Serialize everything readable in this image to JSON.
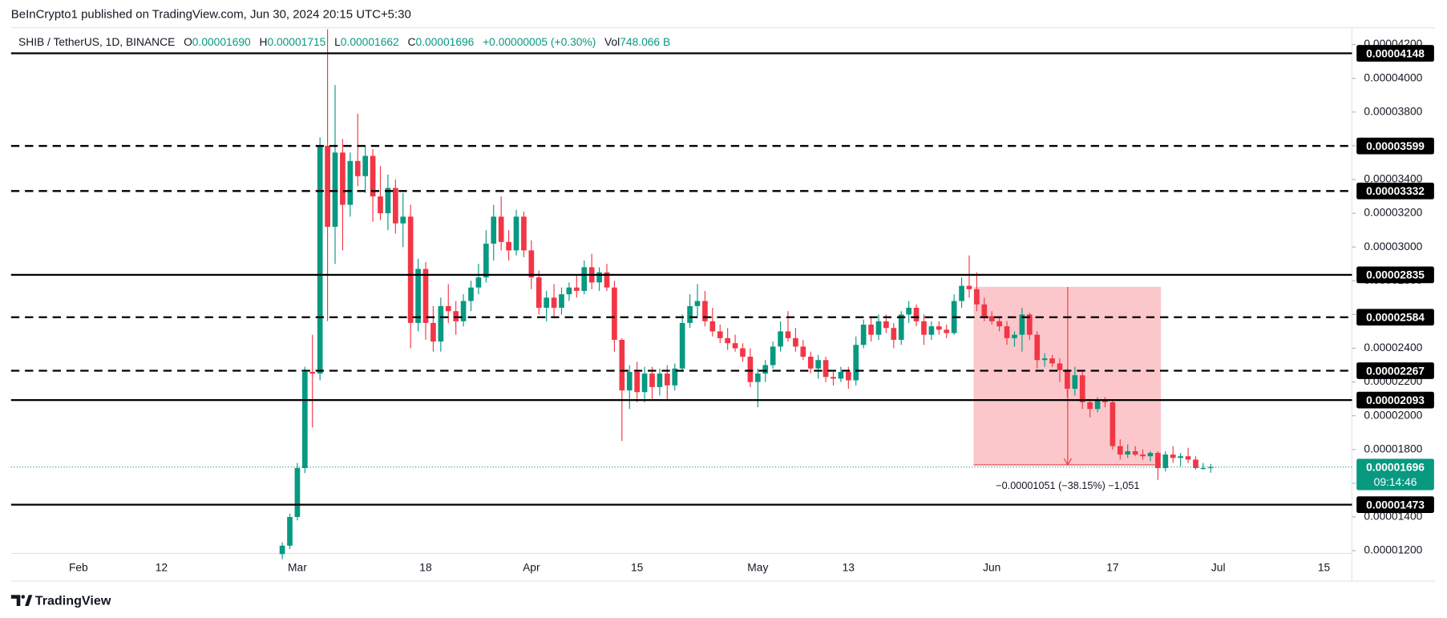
{
  "header": {
    "published": "BeInCrypto1 published on TradingView.com, Jun 30, 2024 20:15 UTC+5:30"
  },
  "legend": {
    "symbol": "SHIB / TetherUS, 1D, BINANCE",
    "o_label": "O",
    "o": "0.00001690",
    "h_label": "H",
    "h": "0.00001715",
    "l_label": "L",
    "l": "0.00001662",
    "c_label": "C",
    "c": "0.00001696",
    "change": "+0.00000005 (+0.30%)",
    "vol_label": "Vol",
    "vol": "748.066 B"
  },
  "footer": {
    "brand": "TradingView"
  },
  "chart_data": {
    "type": "candlestick",
    "up_color": "#089981",
    "down_color": "#f23645",
    "grid": false,
    "categories": [
      "Feb",
      null,
      null,
      null,
      null,
      null,
      null,
      null,
      null,
      null,
      null,
      "12",
      null,
      null,
      null,
      null,
      null,
      null,
      null,
      null,
      null,
      null,
      null,
      null,
      null,
      null,
      null,
      null,
      null,
      "Mar",
      null,
      null,
      null,
      null,
      null,
      null,
      null,
      null,
      null,
      null,
      null,
      null,
      null,
      null,
      null,
      null,
      "18",
      null,
      null,
      null,
      null,
      null,
      null,
      null,
      null,
      null,
      null,
      null,
      null,
      null,
      "Apr",
      null,
      null,
      null,
      null,
      null,
      null,
      null,
      null,
      null,
      null,
      null,
      null,
      null,
      "15",
      null,
      null,
      null,
      null,
      null,
      null,
      null,
      null,
      null,
      null,
      null,
      null,
      null,
      null,
      null,
      "May",
      null,
      null,
      null,
      null,
      null,
      null,
      null,
      null,
      null,
      null,
      null,
      "13",
      null,
      null,
      null,
      null,
      null,
      null,
      null,
      null,
      null,
      null,
      null,
      null,
      null,
      null,
      null,
      null,
      null,
      null,
      "Jun",
      null,
      null,
      null,
      null,
      null,
      null,
      null,
      null,
      null,
      null,
      null,
      null,
      null,
      null,
      null,
      "17",
      null,
      null,
      null,
      null,
      null,
      null,
      null,
      null,
      null,
      null,
      null,
      null,
      null,
      "Jul",
      null,
      null,
      null,
      null,
      null,
      null,
      null,
      null,
      null,
      null,
      null,
      null,
      null,
      "15",
      null,
      null,
      null
    ],
    "open": [
      null,
      null,
      null,
      null,
      null,
      null,
      null,
      null,
      null,
      null,
      null,
      null,
      null,
      null,
      null,
      null,
      null,
      null,
      null,
      null,
      null,
      null,
      null,
      null,
      null,
      null,
      null,
      1.18e-05,
      1.23e-05,
      1.4e-05,
      1.69e-05,
      2.26e-05,
      2.25e-05,
      3.6e-05,
      3.12e-05,
      3.56e-05,
      3.25e-05,
      3.51e-05,
      3.42e-05,
      3.54e-05,
      3.3e-05,
      3.2e-05,
      3.35e-05,
      3.14e-05,
      3.18e-05,
      2.55e-05,
      2.87e-05,
      2.55e-05,
      2.44e-05,
      2.65e-05,
      2.62e-05,
      2.56e-05,
      2.68e-05,
      2.76e-05,
      2.82e-05,
      3.02e-05,
      3.18e-05,
      3.03e-05,
      2.98e-05,
      3.18e-05,
      2.98e-05,
      2.82e-05,
      2.64e-05,
      2.7e-05,
      2.64e-05,
      2.72e-05,
      2.76e-05,
      2.74e-05,
      2.88e-05,
      2.79e-05,
      2.85e-05,
      2.76e-05,
      2.45e-05,
      2.15e-05,
      2.26e-05,
      2.14e-05,
      2.25e-05,
      2.17e-05,
      2.25e-05,
      2.18e-05,
      2.28e-05,
      2.55e-05,
      2.65e-05,
      2.68e-05,
      2.56e-05,
      2.5e-05,
      2.46e-05,
      2.43e-05,
      2.4e-05,
      2.35e-05,
      2.2e-05,
      2.25e-05,
      2.3e-05,
      2.41e-05,
      2.5e-05,
      2.46e-05,
      2.41e-05,
      2.35e-05,
      2.28e-05,
      2.33e-05,
      2.23e-05,
      2.22e-05,
      2.26e-05,
      2.21e-05,
      2.42e-05,
      2.54e-05,
      2.48e-05,
      2.56e-05,
      2.52e-05,
      2.45e-05,
      2.6e-05,
      2.64e-05,
      2.56e-05,
      2.48e-05,
      2.53e-05,
      2.51e-05,
      2.49e-05,
      2.68e-05,
      2.77e-05,
      2.75e-05,
      2.66e-05,
      2.59e-05,
      2.56e-05,
      2.53e-05,
      2.46e-05,
      2.48e-05,
      2.6e-05,
      2.48e-05,
      2.33e-05,
      2.34e-05,
      2.31e-05,
      2.27e-05,
      2.16e-05,
      2.24e-05,
      2.08e-05,
      2.04e-05,
      2.09e-05,
      2.08e-05,
      1.82e-05,
      1.77e-05,
      1.79e-05,
      1.77e-05,
      1.76e-05,
      1.78e-05,
      1.69e-05,
      1.77e-05,
      1.75e-05,
      1.76e-05,
      1.74e-05,
      1.69e-05,
      1.69e-05,
      null,
      null,
      null,
      null,
      null,
      null,
      null,
      null,
      null,
      null,
      null,
      null,
      null,
      null,
      null,
      null,
      null,
      null
    ],
    "high": [
      null,
      null,
      null,
      null,
      null,
      null,
      null,
      null,
      null,
      null,
      null,
      null,
      null,
      null,
      null,
      null,
      null,
      null,
      null,
      null,
      null,
      null,
      null,
      null,
      null,
      null,
      null,
      1.25e-05,
      1.42e-05,
      1.72e-05,
      2.29e-05,
      2.48e-05,
      3.65e-05,
      4.29e-05,
      3.96e-05,
      3.64e-05,
      3.56e-05,
      3.79e-05,
      3.6e-05,
      3.58e-05,
      3.48e-05,
      3.43e-05,
      3.4e-05,
      3.32e-05,
      3.25e-05,
      2.93e-05,
      2.91e-05,
      2.65e-05,
      2.7e-05,
      2.78e-05,
      2.68e-05,
      2.72e-05,
      2.8e-05,
      2.9e-05,
      3.1e-05,
      3.25e-05,
      3.3e-05,
      3.1e-05,
      3.22e-05,
      3.21e-05,
      3.04e-05,
      2.86e-05,
      2.74e-05,
      2.78e-05,
      2.76e-05,
      2.79e-05,
      2.83e-05,
      2.92e-05,
      2.96e-05,
      2.88e-05,
      2.9e-05,
      2.8e-05,
      2.46e-05,
      2.3e-05,
      2.32e-05,
      2.29e-05,
      2.29e-05,
      2.28e-05,
      2.3e-05,
      2.31e-05,
      2.6e-05,
      2.72e-05,
      2.78e-05,
      2.74e-05,
      2.64e-05,
      2.54e-05,
      2.52e-05,
      2.48e-05,
      2.43e-05,
      2.4e-05,
      2.28e-05,
      2.33e-05,
      2.44e-05,
      2.56e-05,
      2.62e-05,
      2.52e-05,
      2.45e-05,
      2.38e-05,
      2.36e-05,
      2.35e-05,
      2.26e-05,
      2.29e-05,
      2.29e-05,
      2.47e-05,
      2.57e-05,
      2.58e-05,
      2.6e-05,
      2.6e-05,
      2.55e-05,
      2.62e-05,
      2.68e-05,
      2.66e-05,
      2.6e-05,
      2.56e-05,
      2.56e-05,
      2.54e-05,
      2.72e-05,
      2.82e-05,
      2.95e-05,
      2.85e-05,
      2.7e-05,
      2.62e-05,
      2.58e-05,
      2.56e-05,
      2.5e-05,
      2.64e-05,
      2.61e-05,
      2.5e-05,
      2.37e-05,
      2.36e-05,
      2.34e-05,
      2.28e-05,
      2.29e-05,
      2.26e-05,
      2.1e-05,
      2.11e-05,
      2.11e-05,
      2.09e-05,
      1.86e-05,
      1.83e-05,
      1.82e-05,
      1.8e-05,
      1.79e-05,
      1.79e-05,
      1.79e-05,
      1.82e-05,
      1.78e-05,
      1.81e-05,
      1.76e-05,
      1.72e-05,
      1.715e-05,
      null,
      null,
      null,
      null,
      null,
      null,
      null,
      null,
      null,
      null,
      null,
      null,
      null,
      null,
      null,
      null,
      null,
      null
    ],
    "low": [
      null,
      null,
      null,
      null,
      null,
      null,
      null,
      null,
      null,
      null,
      null,
      null,
      null,
      null,
      null,
      null,
      null,
      null,
      null,
      null,
      null,
      null,
      null,
      null,
      null,
      null,
      null,
      1.15e-05,
      1.21e-05,
      1.38e-05,
      1.66e-05,
      1.93e-05,
      2.21e-05,
      2.56e-05,
      2.9e-05,
      2.98e-05,
      3.18e-05,
      3.36e-05,
      3.32e-05,
      3.15e-05,
      3.16e-05,
      3.1e-05,
      3.08e-05,
      3e-05,
      2.4e-05,
      2.5e-05,
      2.45e-05,
      2.38e-05,
      2.38e-05,
      2.55e-05,
      2.48e-05,
      2.53e-05,
      2.62e-05,
      2.72e-05,
      2.79e-05,
      2.92e-05,
      2.98e-05,
      2.92e-05,
      2.95e-05,
      2.94e-05,
      2.75e-05,
      2.6e-05,
      2.56e-05,
      2.58e-05,
      2.6e-05,
      2.68e-05,
      2.7e-05,
      2.72e-05,
      2.75e-05,
      2.74e-05,
      2.74e-05,
      2.38e-05,
      1.85e-05,
      2.04e-05,
      2.08e-05,
      2.08e-05,
      2.1e-05,
      2.12e-05,
      2.09e-05,
      2.15e-05,
      2.26e-05,
      2.52e-05,
      2.59e-05,
      2.53e-05,
      2.47e-05,
      2.43e-05,
      2.39e-05,
      2.38e-05,
      2.32e-05,
      2.17e-05,
      2.05e-05,
      2.2e-05,
      2.28e-05,
      2.38e-05,
      2.44e-05,
      2.38e-05,
      2.33e-05,
      2.25e-05,
      2.22e-05,
      2.2e-05,
      2.18e-05,
      2.2e-05,
      2.16e-05,
      2.18e-05,
      2.4e-05,
      2.44e-05,
      2.45e-05,
      2.49e-05,
      2.4e-05,
      2.42e-05,
      2.55e-05,
      2.53e-05,
      2.42e-05,
      2.45e-05,
      2.48e-05,
      2.46e-05,
      2.48e-05,
      2.64e-05,
      2.7e-05,
      2.62e-05,
      2.56e-05,
      2.54e-05,
      2.5e-05,
      2.42e-05,
      2.41e-05,
      2.38e-05,
      2.45e-05,
      2.28e-05,
      2.29e-05,
      2.29e-05,
      2.2e-05,
      2.11e-05,
      2.12e-05,
      2.04e-05,
      1.99e-05,
      2.02e-05,
      2.05e-05,
      1.8e-05,
      1.74e-05,
      1.75e-05,
      1.76e-05,
      1.74e-05,
      1.73e-05,
      1.62e-05,
      1.67e-05,
      1.72e-05,
      1.7e-05,
      1.72e-05,
      1.68e-05,
      1.68e-05,
      1.662e-05,
      null,
      null,
      null,
      null,
      null,
      null,
      null,
      null,
      null,
      null,
      null,
      null,
      null,
      null,
      null,
      null,
      null,
      null
    ],
    "close": [
      null,
      null,
      null,
      null,
      null,
      null,
      null,
      null,
      null,
      null,
      null,
      null,
      null,
      null,
      null,
      null,
      null,
      null,
      null,
      null,
      null,
      null,
      null,
      null,
      null,
      null,
      null,
      1.23e-05,
      1.4e-05,
      1.69e-05,
      2.26e-05,
      2.25e-05,
      3.6e-05,
      3.12e-05,
      3.56e-05,
      3.25e-05,
      3.51e-05,
      3.42e-05,
      3.54e-05,
      3.3e-05,
      3.2e-05,
      3.35e-05,
      3.14e-05,
      3.18e-05,
      2.55e-05,
      2.87e-05,
      2.55e-05,
      2.44e-05,
      2.65e-05,
      2.62e-05,
      2.56e-05,
      2.68e-05,
      2.76e-05,
      2.82e-05,
      3.02e-05,
      3.18e-05,
      3.03e-05,
      2.98e-05,
      3.18e-05,
      2.98e-05,
      2.82e-05,
      2.64e-05,
      2.7e-05,
      2.64e-05,
      2.72e-05,
      2.76e-05,
      2.74e-05,
      2.88e-05,
      2.79e-05,
      2.85e-05,
      2.76e-05,
      2.45e-05,
      2.15e-05,
      2.26e-05,
      2.14e-05,
      2.25e-05,
      2.17e-05,
      2.25e-05,
      2.18e-05,
      2.28e-05,
      2.55e-05,
      2.65e-05,
      2.68e-05,
      2.56e-05,
      2.5e-05,
      2.46e-05,
      2.43e-05,
      2.4e-05,
      2.35e-05,
      2.2e-05,
      2.25e-05,
      2.3e-05,
      2.41e-05,
      2.5e-05,
      2.46e-05,
      2.41e-05,
      2.35e-05,
      2.28e-05,
      2.33e-05,
      2.23e-05,
      2.22e-05,
      2.26e-05,
      2.21e-05,
      2.42e-05,
      2.54e-05,
      2.48e-05,
      2.56e-05,
      2.52e-05,
      2.45e-05,
      2.6e-05,
      2.64e-05,
      2.56e-05,
      2.48e-05,
      2.53e-05,
      2.51e-05,
      2.49e-05,
      2.68e-05,
      2.77e-05,
      2.75e-05,
      2.66e-05,
      2.59e-05,
      2.56e-05,
      2.53e-05,
      2.46e-05,
      2.48e-05,
      2.6e-05,
      2.48e-05,
      2.33e-05,
      2.34e-05,
      2.31e-05,
      2.27e-05,
      2.16e-05,
      2.24e-05,
      2.08e-05,
      2.04e-05,
      2.09e-05,
      2.08e-05,
      1.82e-05,
      1.77e-05,
      1.79e-05,
      1.77e-05,
      1.76e-05,
      1.78e-05,
      1.69e-05,
      1.77e-05,
      1.75e-05,
      1.76e-05,
      1.74e-05,
      1.69e-05,
      1.69e-05,
      1.696e-05,
      null,
      null,
      null,
      null,
      null,
      null,
      null,
      null,
      null,
      null,
      null,
      null,
      null,
      null,
      null,
      null,
      null,
      null
    ],
    "ylim": [
      1.184e-05,
      4.3e-05
    ],
    "yticks": [
      {
        "value": 1.2e-05,
        "label": "0.00001200"
      },
      {
        "value": 1.4e-05,
        "label": "0.00001400"
      },
      {
        "value": 1.6e-05,
        "label": "0.00001600"
      },
      {
        "value": 1.8e-05,
        "label": "0.00001800"
      },
      {
        "value": 2e-05,
        "label": "0.00002000"
      },
      {
        "value": 2.2e-05,
        "label": "0.00002200"
      },
      {
        "value": 2.4e-05,
        "label": "0.00002400"
      },
      {
        "value": 2.6e-05,
        "label": "0.00002600"
      },
      {
        "value": 2.8e-05,
        "label": "0.00002800"
      },
      {
        "value": 3e-05,
        "label": "0.00003000"
      },
      {
        "value": 3.2e-05,
        "label": "0.00003200"
      },
      {
        "value": 3.4e-05,
        "label": "0.00003400"
      },
      {
        "value": 3.6e-05,
        "label": "0.00003600"
      },
      {
        "value": 3.8e-05,
        "label": "0.00003800"
      },
      {
        "value": 4e-05,
        "label": "0.00004000"
      },
      {
        "value": 4.2e-05,
        "label": "0.00004200"
      }
    ],
    "levels": [
      {
        "value": 4.148e-05,
        "line": "solid"
      },
      {
        "value": 3.599e-05,
        "line": "dashed"
      },
      {
        "value": 3.332e-05,
        "line": "dashed"
      },
      {
        "value": 2.835e-05,
        "line": "solid"
      },
      {
        "value": 2.584e-05,
        "line": "dashed"
      },
      {
        "value": 2.267e-05,
        "line": "dashed"
      },
      {
        "value": 2.093e-05,
        "line": "solid"
      },
      {
        "value": 1.473e-05,
        "line": "solid"
      }
    ],
    "level_color": "#000000",
    "last_price": {
      "value": 1.696e-05,
      "countdown": "09:14:46",
      "color": "#089981"
    },
    "measure": {
      "label": "−0.00001051 (−38.15%) −1,051",
      "color": "#f23645"
    }
  }
}
